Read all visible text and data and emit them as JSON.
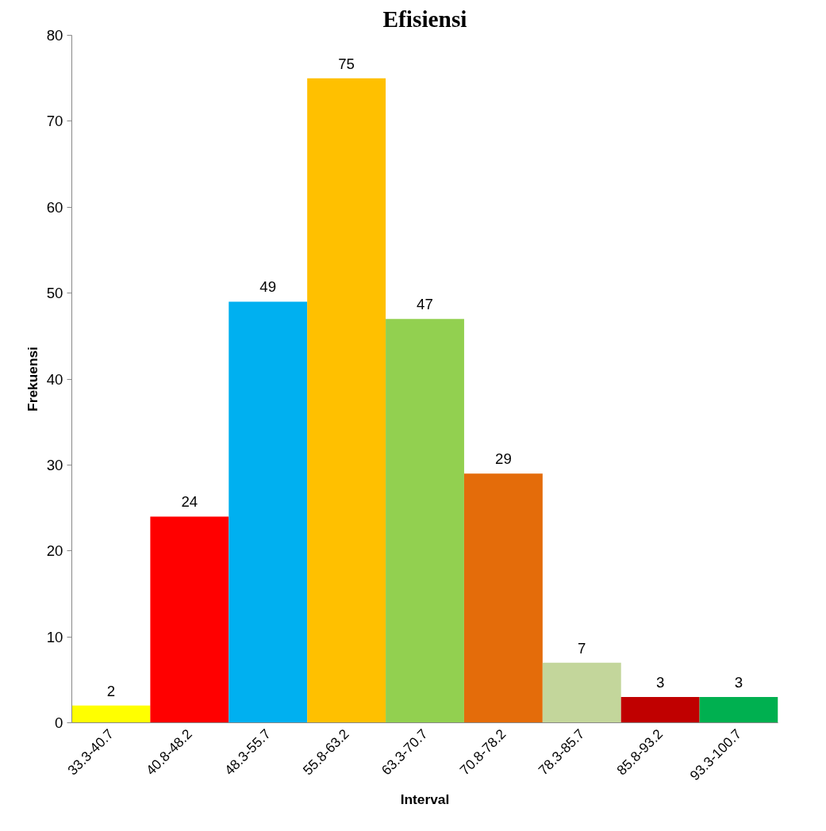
{
  "chart_data": {
    "type": "bar",
    "title": "Efisiensi",
    "xlabel": "Interval",
    "ylabel": "Frekuensi",
    "categories": [
      "33.3-40.7",
      "40.8-48.2",
      "48.3-55.7",
      "55.8-63.2",
      "63.3-70.7",
      "70.8-78.2",
      "78.3-85.7",
      "85.8-93.2",
      "93.3-100.7"
    ],
    "values": [
      2,
      24,
      49,
      75,
      47,
      29,
      7,
      3,
      3
    ],
    "colors": [
      "#ffff00",
      "#ff0000",
      "#00b0f0",
      "#ffc000",
      "#92d050",
      "#e46c0a",
      "#c3d69b",
      "#c00000",
      "#00b050"
    ],
    "ylim": [
      0,
      80
    ],
    "yticks": [
      0,
      10,
      20,
      30,
      40,
      50,
      60,
      70,
      80
    ],
    "grid": false,
    "data_labels": true
  }
}
